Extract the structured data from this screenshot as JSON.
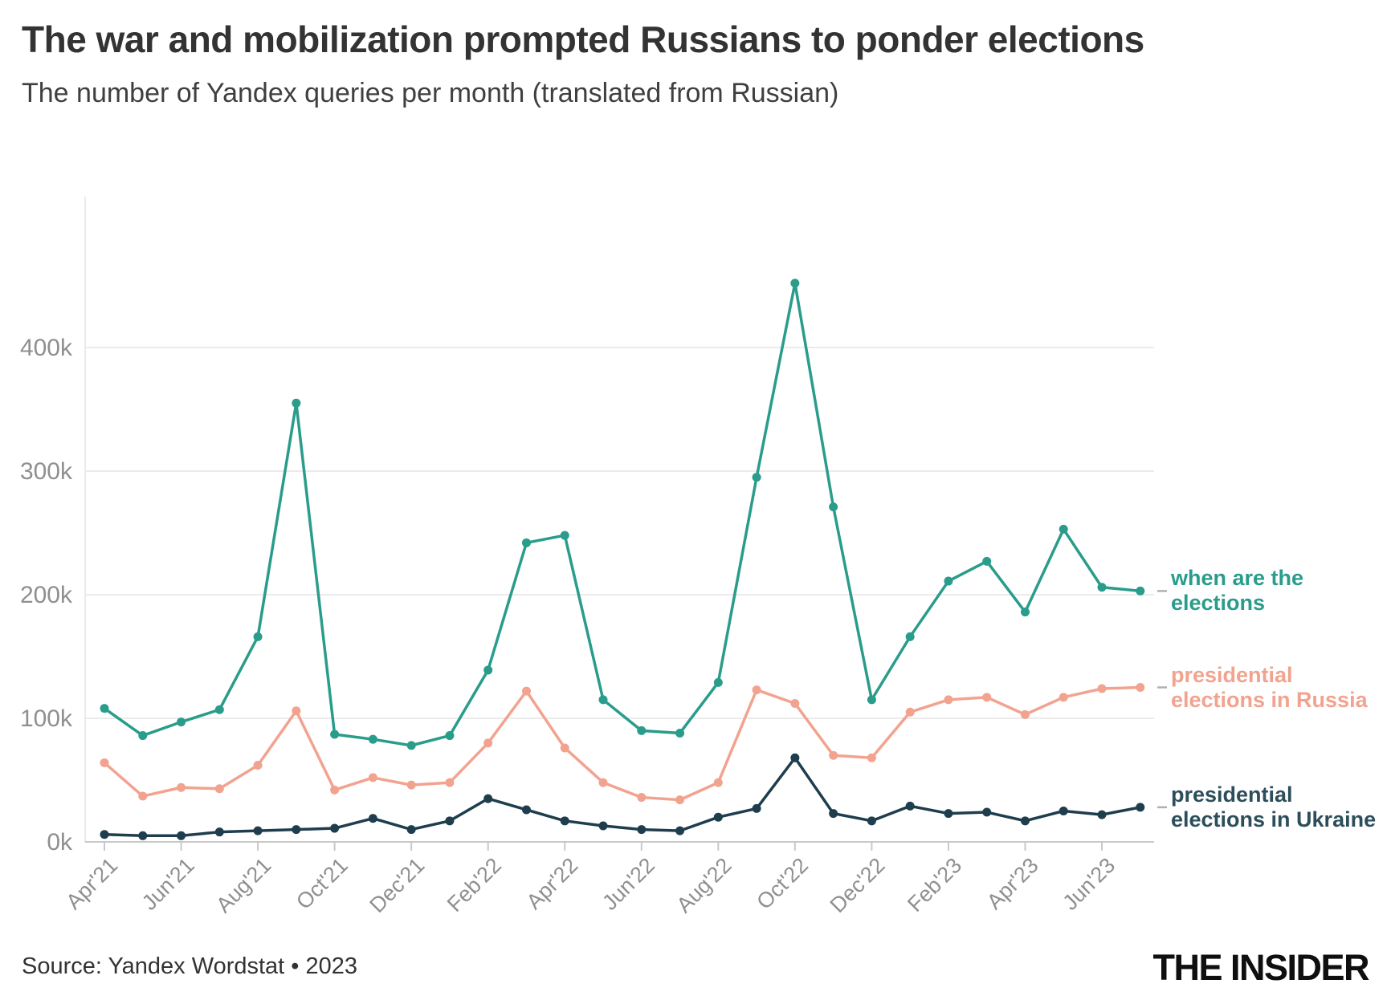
{
  "header": {
    "title": "The war and mobilization prompted Russians to ponder elections",
    "subtitle": "The number of Yandex queries per month (translated from Russian)"
  },
  "footer": {
    "source": "Source: Yandex Wordstat • 2023",
    "brand": "THE INSIDER"
  },
  "chart_data": {
    "type": "line",
    "title": "The war and mobilization prompted Russians to ponder elections",
    "subtitle": "The number of Yandex queries per month (translated from Russian)",
    "unit": "queries per month (thousands)",
    "x": [
      "Apr'21",
      "May'21",
      "Jun'21",
      "Jul'21",
      "Aug'21",
      "Sep'21",
      "Oct'21",
      "Nov'21",
      "Dec'21",
      "Jan'22",
      "Feb'22",
      "Mar'22",
      "Apr'22",
      "May'22",
      "Jun'22",
      "Jul'22",
      "Aug'22",
      "Sep'22",
      "Oct'22",
      "Nov'22",
      "Dec'22",
      "Jan'23",
      "Feb'23",
      "Mar'23",
      "Apr'23",
      "May'23",
      "Jun'23",
      "Jul'23"
    ],
    "x_tick_labels": [
      "Apr'21",
      "Jun'21",
      "Aug'21",
      "Oct'21",
      "Dec'21",
      "Feb'22",
      "Apr'22",
      "Jun'22",
      "Aug'22",
      "Oct'22",
      "Dec'22",
      "Feb'23",
      "Apr'23",
      "Jun'23"
    ],
    "y_ticks": [
      "0k",
      "100k",
      "200k",
      "300k",
      "400k"
    ],
    "y_tick_values_thousands": [
      0,
      100,
      200,
      300,
      400
    ],
    "ylim_thousands": [
      0,
      470
    ],
    "grid": "horizontal",
    "legend_position": "right-edge-direct-labels",
    "series": [
      {
        "name": "when are the elections",
        "label_lines": [
          "when are the",
          "elections"
        ],
        "color": "#2a9c8b",
        "label_color": "#2a9c8b",
        "values_thousands": [
          108,
          86,
          97,
          107,
          166,
          355,
          87,
          83,
          78,
          86,
          139,
          242,
          248,
          115,
          90,
          88,
          129,
          295,
          452,
          271,
          115,
          166,
          211,
          227,
          186,
          253,
          206,
          203
        ]
      },
      {
        "name": "presidential elections in Russia",
        "label_lines": [
          "presidential",
          "elections in Russia"
        ],
        "color": "#f2a38f",
        "label_color": "#f2a38f",
        "values_thousands": [
          64,
          37,
          44,
          43,
          62,
          106,
          42,
          52,
          46,
          48,
          80,
          122,
          76,
          48,
          36,
          34,
          48,
          123,
          112,
          70,
          68,
          105,
          115,
          117,
          103,
          117,
          124,
          125
        ]
      },
      {
        "name": "presidential elections in Ukraine",
        "label_lines": [
          "presidential",
          "elections in Ukraine"
        ],
        "color": "#1e3d4d",
        "label_color": "#2c4e5b",
        "values_thousands": [
          6,
          5,
          5,
          8,
          9,
          10,
          11,
          19,
          10,
          17,
          35,
          26,
          17,
          13,
          10,
          9,
          20,
          27,
          68,
          23,
          17,
          29,
          23,
          24,
          17,
          25,
          22,
          28
        ]
      }
    ],
    "style": {
      "grid_color": "#ebebeb",
      "baseline_color": "#c9c9c9",
      "tick_color": "#c9c9c9",
      "axis_text_color": "#8f8f8f",
      "label_dash_color": "#b0b0b0"
    }
  }
}
